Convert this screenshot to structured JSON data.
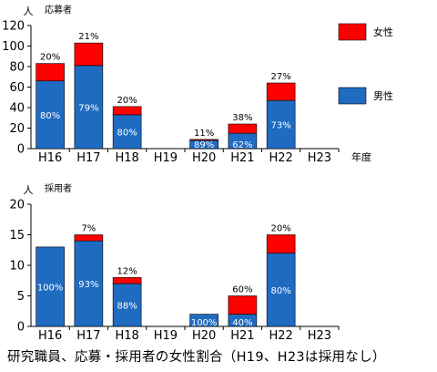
{
  "caption": "研究職員、応募・採用者の女性割合（H19、H23は採用なし）",
  "colors": {
    "male": "#1f6bc1",
    "female": "#ff0000"
  },
  "legend": {
    "female": "女性",
    "male": "男性"
  },
  "chart_data": [
    {
      "type": "bar",
      "title": "応募者",
      "ylabel": "人",
      "xlabel": "年度",
      "ylim": [
        0,
        120
      ],
      "yticks": [
        0,
        20,
        40,
        60,
        80,
        100,
        120
      ],
      "categories": [
        "H16",
        "H17",
        "H18",
        "H19",
        "H20",
        "H21",
        "H22",
        "H23"
      ],
      "series": [
        {
          "name": "男性",
          "values": [
            66,
            81,
            33,
            0,
            8,
            15,
            47,
            0
          ],
          "labels": [
            "80%",
            "79%",
            "80%",
            "",
            "89%",
            "62%",
            "73%",
            ""
          ]
        },
        {
          "name": "女性",
          "values": [
            17,
            22,
            8,
            0,
            1,
            9,
            17,
            0
          ],
          "labels": [
            "20%",
            "21%",
            "20%",
            "",
            "11%",
            "38%",
            "27%",
            ""
          ]
        }
      ]
    },
    {
      "type": "bar",
      "title": "採用者",
      "ylabel": "人",
      "ylim": [
        0,
        20
      ],
      "yticks": [
        0,
        5,
        10,
        15,
        20
      ],
      "categories": [
        "H16",
        "H17",
        "H18",
        "H19",
        "H20",
        "H21",
        "H22",
        "H23"
      ],
      "series": [
        {
          "name": "男性",
          "values": [
            13,
            14,
            7,
            0,
            2,
            2,
            12,
            0
          ],
          "labels": [
            "100%",
            "93%",
            "88%",
            "",
            "100%",
            "40%",
            "80%",
            ""
          ]
        },
        {
          "name": "女性",
          "values": [
            0,
            1,
            1,
            0,
            0,
            3,
            3,
            0
          ],
          "labels": [
            "",
            "7%",
            "12%",
            "",
            "",
            "60%",
            "20%",
            ""
          ]
        }
      ]
    }
  ]
}
